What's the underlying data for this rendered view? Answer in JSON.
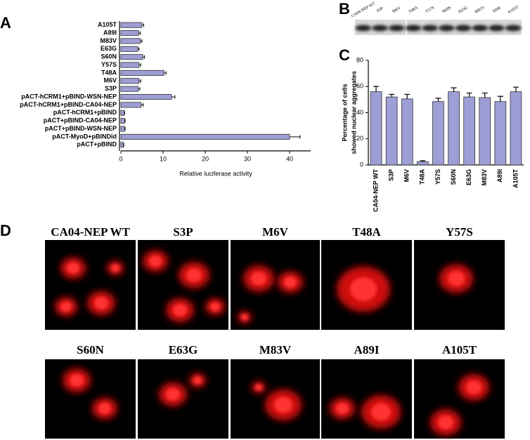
{
  "panels": [
    "A",
    "B",
    "C",
    "D"
  ],
  "blot": {
    "lanes": [
      "CA04-NEP WT",
      "S3P",
      "M6V",
      "T48A",
      "Y57S",
      "S60N",
      "E63G",
      "M83V",
      "A89I",
      "A105T"
    ]
  },
  "micrographs": [
    "CA04-NEP WT",
    "S3P",
    "M6V",
    "T48A",
    "Y57S",
    "S60N",
    "E63G",
    "M83V",
    "A89I",
    "A105T"
  ],
  "chart_data": [
    {
      "type": "bar",
      "horizontal": true,
      "color": "#9e9ed6",
      "xlabel": "Relative luciferase activity",
      "categories": [
        "A105T",
        "A89I",
        "M83V",
        "E63G",
        "S60N",
        "Y57S",
        "T48A",
        "M6V",
        "S3P",
        "pACT-hCRM1+pBIND-WSN-NEP",
        "pACT-hCRM1+pBIND-CA04-NEP",
        "pACT-hCRM1+pBIND",
        "pACT+pBIND-CA04-NEP",
        "pACT+pBIND-WSN-NEP",
        "pACT-MyoD+pBINDid",
        "pACT+pBIND"
      ],
      "values": [
        5.0,
        4.2,
        4.6,
        4.0,
        5.2,
        4.3,
        10.2,
        4.3,
        4.1,
        12.0,
        4.8,
        0.8,
        0.9,
        0.9,
        40.0,
        0.6
      ],
      "errors": [
        0.4,
        0.4,
        0.4,
        0.3,
        0.4,
        0.4,
        0.5,
        0.4,
        0.4,
        0.8,
        0.5,
        0.1,
        0.1,
        0.1,
        2.5,
        0.1
      ],
      "xlim": [
        0,
        45
      ],
      "xticks": [
        0,
        10,
        20,
        30,
        40
      ]
    },
    {
      "type": "bar",
      "horizontal": false,
      "color": "#9e9ed6",
      "ylabel": [
        "Percentage of cells",
        "showed nuclear aggregates"
      ],
      "categories": [
        "CA04-NEP WT",
        "S3P",
        "M6V",
        "T48A",
        "Y57S",
        "S60N",
        "E63G",
        "M83V",
        "A89I",
        "A105T"
      ],
      "values": [
        56,
        52,
        50.5,
        2.5,
        48.5,
        56,
        52,
        51.5,
        48.5,
        56
      ],
      "errors": [
        4,
        2,
        3.5,
        0.8,
        2.5,
        3,
        3,
        3.5,
        4,
        3.5
      ],
      "ylim": [
        0,
        80
      ],
      "yticks": [
        0,
        20,
        40,
        60,
        80
      ]
    }
  ]
}
